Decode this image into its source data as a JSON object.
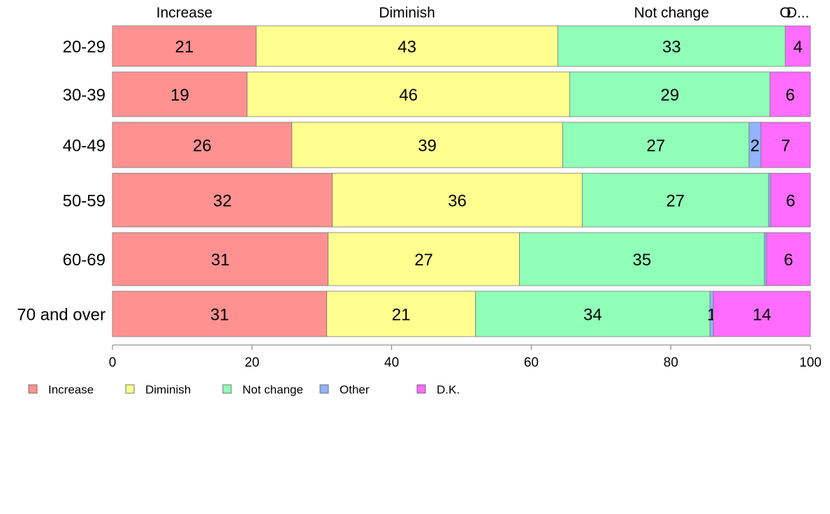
{
  "chart_data": {
    "type": "bar",
    "orientation": "horizontal",
    "stacked": true,
    "categories": [
      "20-29",
      "30-39",
      "40-49",
      "50-59",
      "60-69",
      "70 and over"
    ],
    "series": [
      {
        "name": "Increase",
        "color": "#ff9290",
        "values": [
          20.6,
          19.3,
          25.7,
          31.5,
          30.9,
          30.7
        ]
      },
      {
        "name": "Diminish",
        "color": "#ffff90",
        "values": [
          43.2,
          46.2,
          38.8,
          35.8,
          27.4,
          21.3
        ]
      },
      {
        "name": "Not change",
        "color": "#90ffb8",
        "values": [
          32.6,
          28.7,
          26.7,
          26.7,
          35.1,
          33.6
        ]
      },
      {
        "name": "Other",
        "color": "#90b4ff",
        "values": [
          0.0,
          0.0,
          1.7,
          0.3,
          0.3,
          0.5
        ]
      },
      {
        "name": "D.K.",
        "color": "#ff6cff",
        "values": [
          3.6,
          5.8,
          7.1,
          5.7,
          6.3,
          13.9
        ]
      }
    ],
    "segment_labels": [
      [
        "21",
        "43",
        "33",
        "",
        "4"
      ],
      [
        "19",
        "46",
        "29",
        "",
        "6"
      ],
      [
        "26",
        "39",
        "27",
        "2",
        "7"
      ],
      [
        "32",
        "36",
        "27",
        "",
        "6"
      ],
      [
        "31",
        "27",
        "35",
        "",
        "6"
      ],
      [
        "31",
        "21",
        "34",
        "1",
        "14"
      ]
    ],
    "top_labels": [
      "Increase",
      "Diminish",
      "Not change",
      "O",
      "D..."
    ],
    "xlim": [
      0,
      100
    ],
    "xticks": [
      "0",
      "20",
      "40",
      "60",
      "80",
      "100"
    ],
    "grid": false,
    "legend_position": "bottom-left",
    "legend": [
      "Increase",
      "Diminish",
      "Not change",
      "Other",
      "D.K."
    ]
  }
}
